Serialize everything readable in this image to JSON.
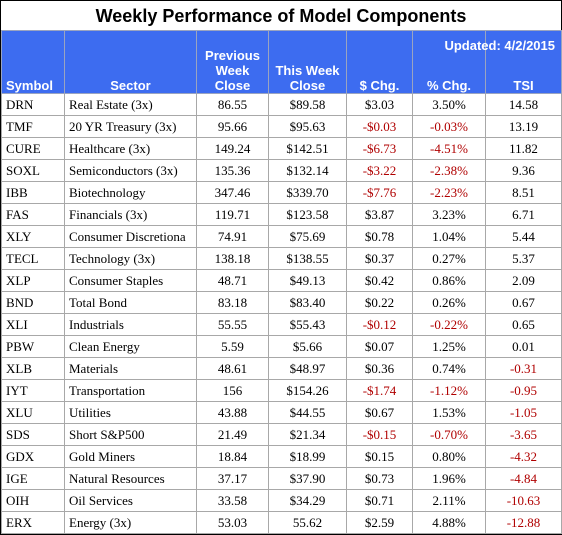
{
  "title": "Weekly Performance of Model Components",
  "updated": "Updated:  4/2/2015",
  "headers": {
    "symbol": "Symbol",
    "sector": "Sector",
    "prev_l1": "Previous",
    "prev_l2": "Week",
    "prev_l3": "Close",
    "this_l1": "This Week",
    "this_l2": "Close",
    "chg": "$ Chg.",
    "pct": "% Chg.",
    "tsi": "TSI"
  },
  "rows": [
    {
      "symbol": "DRN",
      "sector": "Real Estate  (3x)",
      "prev": "86.55",
      "this": "$89.58",
      "chg": "$3.03",
      "pct": "3.50%",
      "tsi": "14.58",
      "neg": false,
      "tsi_neg": false
    },
    {
      "symbol": "TMF",
      "sector": "20 YR Treasury  (3x)",
      "prev": "95.66",
      "this": "$95.63",
      "chg": "-$0.03",
      "pct": "-0.03%",
      "tsi": "13.19",
      "neg": true,
      "tsi_neg": false
    },
    {
      "symbol": "CURE",
      "sector": "Healthcare  (3x)",
      "prev": "149.24",
      "this": "$142.51",
      "chg": "-$6.73",
      "pct": "-4.51%",
      "tsi": "11.82",
      "neg": true,
      "tsi_neg": false
    },
    {
      "symbol": "SOXL",
      "sector": "Semiconductors  (3x)",
      "prev": "135.36",
      "this": "$132.14",
      "chg": "-$3.22",
      "pct": "-2.38%",
      "tsi": "9.36",
      "neg": true,
      "tsi_neg": false
    },
    {
      "symbol": "IBB",
      "sector": "Biotechnology",
      "prev": "347.46",
      "this": "$339.70",
      "chg": "-$7.76",
      "pct": "-2.23%",
      "tsi": "8.51",
      "neg": true,
      "tsi_neg": false
    },
    {
      "symbol": "FAS",
      "sector": "Financials  (3x)",
      "prev": "119.71",
      "this": "$123.58",
      "chg": "$3.87",
      "pct": "3.23%",
      "tsi": "6.71",
      "neg": false,
      "tsi_neg": false
    },
    {
      "symbol": "XLY",
      "sector": "Consumer Discretiona",
      "prev": "74.91",
      "this": "$75.69",
      "chg": "$0.78",
      "pct": "1.04%",
      "tsi": "5.44",
      "neg": false,
      "tsi_neg": false
    },
    {
      "symbol": "TECL",
      "sector": "Technology  (3x)",
      "prev": "138.18",
      "this": "$138.55",
      "chg": "$0.37",
      "pct": "0.27%",
      "tsi": "5.37",
      "neg": false,
      "tsi_neg": false
    },
    {
      "symbol": "XLP",
      "sector": "Consumer Staples",
      "prev": "48.71",
      "this": "$49.13",
      "chg": "$0.42",
      "pct": "0.86%",
      "tsi": "2.09",
      "neg": false,
      "tsi_neg": false
    },
    {
      "symbol": "BND",
      "sector": "Total Bond",
      "prev": "83.18",
      "this": "$83.40",
      "chg": "$0.22",
      "pct": "0.26%",
      "tsi": "0.67",
      "neg": false,
      "tsi_neg": false
    },
    {
      "symbol": "XLI",
      "sector": "Industrials",
      "prev": "55.55",
      "this": "$55.43",
      "chg": "-$0.12",
      "pct": "-0.22%",
      "tsi": "0.65",
      "neg": true,
      "tsi_neg": false
    },
    {
      "symbol": "PBW",
      "sector": "Clean Energy",
      "prev": "5.59",
      "this": "$5.66",
      "chg": "$0.07",
      "pct": "1.25%",
      "tsi": "0.01",
      "neg": false,
      "tsi_neg": false
    },
    {
      "symbol": "XLB",
      "sector": "Materials",
      "prev": "48.61",
      "this": "$48.97",
      "chg": "$0.36",
      "pct": "0.74%",
      "tsi": "-0.31",
      "neg": false,
      "tsi_neg": true
    },
    {
      "symbol": "IYT",
      "sector": "Transportation",
      "prev": "156",
      "this": "$154.26",
      "chg": "-$1.74",
      "pct": "-1.12%",
      "tsi": "-0.95",
      "neg": true,
      "tsi_neg": true
    },
    {
      "symbol": "XLU",
      "sector": "Utilities",
      "prev": "43.88",
      "this": "$44.55",
      "chg": "$0.67",
      "pct": "1.53%",
      "tsi": "-1.05",
      "neg": false,
      "tsi_neg": true
    },
    {
      "symbol": "SDS",
      "sector": "Short S&P500",
      "prev": "21.49",
      "this": "$21.34",
      "chg": "-$0.15",
      "pct": "-0.70%",
      "tsi": "-3.65",
      "neg": true,
      "tsi_neg": true
    },
    {
      "symbol": "GDX",
      "sector": "Gold Miners",
      "prev": "18.84",
      "this": "$18.99",
      "chg": "$0.15",
      "pct": "0.80%",
      "tsi": "-4.32",
      "neg": false,
      "tsi_neg": true
    },
    {
      "symbol": "IGE",
      "sector": "Natural Resources",
      "prev": "37.17",
      "this": "$37.90",
      "chg": "$0.73",
      "pct": "1.96%",
      "tsi": "-4.84",
      "neg": false,
      "tsi_neg": true
    },
    {
      "symbol": "OIH",
      "sector": "Oil Services",
      "prev": "33.58",
      "this": "$34.29",
      "chg": "$0.71",
      "pct": "2.11%",
      "tsi": "-10.63",
      "neg": false,
      "tsi_neg": true
    },
    {
      "symbol": "ERX",
      "sector": "Energy  (3x)",
      "prev": "53.03",
      "this": "55.62",
      "chg": "$2.59",
      "pct": "4.88%",
      "tsi": "-12.88",
      "neg": false,
      "tsi_neg": true
    }
  ],
  "colors": {
    "header_bg": "#3d6cf0",
    "negative": "#b00000"
  }
}
